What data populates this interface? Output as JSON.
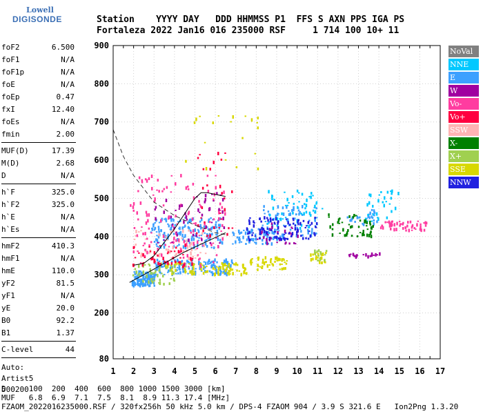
{
  "logo": {
    "company": "Lowell",
    "brand": "DIGISONDE"
  },
  "header": {
    "labels": "Station    YYYY DAY   DDD HHMMSS P1  FFS S AXN PPS IGA PS",
    "values": "Fortaleza 2022 Jan16 016 235000 RSF     1 714 100 10+ 11"
  },
  "params": [
    [
      [
        "foF2",
        "6.500"
      ],
      [
        "foF1",
        "N/A"
      ],
      [
        "foF1p",
        "N/A"
      ],
      [
        "foE",
        "N/A"
      ],
      [
        "foEp",
        "0.47"
      ],
      [
        "fxI",
        "12.40"
      ],
      [
        "foEs",
        "N/A"
      ],
      [
        "fmin",
        "2.00"
      ]
    ],
    [
      [
        "MUF(D)",
        "17.39"
      ],
      [
        "M(D)",
        "2.68"
      ],
      [
        "D",
        "N/A"
      ]
    ],
    [
      [
        "h`F",
        "325.0"
      ],
      [
        "h`F2",
        "325.0"
      ],
      [
        "h`E",
        "N/A"
      ],
      [
        "h`Es",
        "N/A"
      ]
    ],
    [
      [
        "hmF2",
        "410.3"
      ],
      [
        "hmF1",
        "N/A"
      ],
      [
        "hmE",
        "110.0"
      ],
      [
        "yF2",
        "81.5"
      ],
      [
        "yF1",
        "N/A"
      ],
      [
        "yE",
        "20.0"
      ],
      [
        "B0",
        "92.2"
      ],
      [
        "B1",
        "1.37"
      ]
    ],
    [
      [
        "C-level",
        "44"
      ]
    ]
  ],
  "notes": [
    "Auto:",
    "Artist5",
    "500200"
  ],
  "legend": [
    {
      "label": "NoVal",
      "color": "#808080"
    },
    {
      "label": "NNE",
      "color": "#00c8ff"
    },
    {
      "label": "E",
      "color": "#3ca0ff"
    },
    {
      "label": "W",
      "color": "#a000a0"
    },
    {
      "label": "Vo-",
      "color": "#ff3ca0"
    },
    {
      "label": "Vo+",
      "color": "#ff0040"
    },
    {
      "label": "SSW",
      "color": "#ffb4b4"
    },
    {
      "label": "X-",
      "color": "#008000"
    },
    {
      "label": "X+",
      "color": "#a0d050"
    },
    {
      "label": "SSE",
      "color": "#d8d800"
    },
    {
      "label": "NNW",
      "color": "#2020e0"
    }
  ],
  "footer": {
    "line1": "D     100  200  400  600  800 1000 1500 3000 [km]",
    "line2": "MUF   6.8  6.9  7.1  7.5  8.1  8.9 11.3 17.4 [MHz]",
    "line3": "FZAOM_2022016235000.RSF / 320fx256h 50 kHz 5.0 km / DPS-4 FZAOM 904 / 3.9 S 321.6 E   Ion2Png 1.3.20"
  },
  "chart_data": {
    "type": "scatter",
    "title": "",
    "xlabel": "",
    "ylabel": "",
    "xlim": [
      1,
      17
    ],
    "ylim": [
      80,
      900
    ],
    "x_ticks": [
      1,
      2,
      3,
      4,
      5,
      6,
      7,
      8,
      9,
      10,
      11,
      12,
      13,
      14,
      15,
      16,
      17
    ],
    "y_ticks": [
      80,
      200,
      300,
      400,
      500,
      600,
      700,
      800,
      900
    ],
    "grid": true,
    "series": [
      {
        "name": "E",
        "color": "#3ca0ff",
        "clusters": [
          {
            "x": [
              1.9,
              3.0
            ],
            "y": [
              270,
              310
            ],
            "n": 130
          },
          {
            "x": [
              3.0,
              6.8
            ],
            "y": [
              300,
              340
            ],
            "n": 160
          },
          {
            "x": [
              2.8,
              6.3
            ],
            "y": [
              370,
              450
            ],
            "n": 170
          },
          {
            "x": [
              6.8,
              9.3
            ],
            "y": [
              380,
              420
            ],
            "n": 80
          },
          {
            "x": [
              8.2,
              11.0
            ],
            "y": [
              400,
              480
            ],
            "n": 70
          },
          {
            "x": [
              12.4,
              13.9
            ],
            "y": [
              430,
              470
            ],
            "n": 30
          }
        ]
      },
      {
        "name": "NNE",
        "color": "#00c8ff",
        "clusters": [
          {
            "x": [
              8.5,
              11.2
            ],
            "y": [
              420,
              520
            ],
            "n": 60
          },
          {
            "x": [
              13.3,
              15.0
            ],
            "y": [
              440,
              520
            ],
            "n": 30
          }
        ]
      },
      {
        "name": "SSE",
        "color": "#d8d800",
        "clusters": [
          {
            "x": [
              3.5,
              7.5
            ],
            "y": [
              300,
              330
            ],
            "n": 90
          },
          {
            "x": [
              7.5,
              9.5
            ],
            "y": [
              310,
              345
            ],
            "n": 50
          },
          {
            "x": [
              10.6,
              11.4
            ],
            "y": [
              330,
              360
            ],
            "n": 25
          },
          {
            "x": [
              4.5,
              8.2
            ],
            "y": [
              560,
              720
            ],
            "n": 20
          }
        ]
      },
      {
        "name": "X+",
        "color": "#a0d050",
        "clusters": [
          {
            "x": [
              1.9,
              4.0
            ],
            "y": [
              275,
              330
            ],
            "n": 50
          },
          {
            "x": [
              10.7,
              11.5
            ],
            "y": [
              335,
              365
            ],
            "n": 12
          }
        ]
      },
      {
        "name": "SSW",
        "color": "#ffb4b4",
        "clusters": [
          {
            "x": [
              2.0,
              5.5
            ],
            "y": [
              340,
              420
            ],
            "n": 60
          }
        ]
      },
      {
        "name": "Vo-",
        "color": "#ff3ca0",
        "clusters": [
          {
            "x": [
              1.8,
              6.5
            ],
            "y": [
              320,
              560
            ],
            "n": 140
          },
          {
            "x": [
              14.0,
              16.3
            ],
            "y": [
              415,
              440
            ],
            "n": 50
          }
        ]
      },
      {
        "name": "Vo+",
        "color": "#ff0040",
        "clusters": [
          {
            "x": [
              1.8,
              5.0
            ],
            "y": [
              320,
              380
            ],
            "n": 50
          },
          {
            "x": [
              5.0,
              6.8
            ],
            "y": [
              400,
              620
            ],
            "n": 30
          }
        ]
      },
      {
        "name": "W",
        "color": "#a000a0",
        "clusters": [
          {
            "x": [
              3.0,
              6.5
            ],
            "y": [
              380,
              520
            ],
            "n": 50
          },
          {
            "x": [
              8.0,
              10.0
            ],
            "y": [
              380,
              440
            ],
            "n": 30
          },
          {
            "x": [
              12.5,
              14.0
            ],
            "y": [
              345,
              355
            ],
            "n": 20
          }
        ]
      },
      {
        "name": "NNW",
        "color": "#2020e0",
        "clusters": [
          {
            "x": [
              7.5,
              11.0
            ],
            "y": [
              390,
              450
            ],
            "n": 100
          }
        ]
      },
      {
        "name": "X-",
        "color": "#008000",
        "clusters": [
          {
            "x": [
              11.5,
              13.7
            ],
            "y": [
              400,
              460
            ],
            "n": 50
          }
        ]
      }
    ],
    "trace_F": {
      "x": [
        2.0,
        2.5,
        3.0,
        4.0,
        5.0,
        5.3,
        5.6,
        6.5
      ],
      "y": [
        325,
        330,
        350,
        420,
        500,
        515,
        515,
        505
      ]
    },
    "trace_E": {
      "x": [
        1.8,
        2.5,
        3.5,
        4.5,
        5.5,
        6.5
      ],
      "y": [
        280,
        300,
        330,
        360,
        385,
        410
      ]
    },
    "muf_curve": {
      "x": [
        1.0,
        1.5,
        2.0,
        3.0,
        4.0,
        5.0,
        6.0,
        6.5
      ],
      "y": [
        680,
        610,
        560,
        490,
        455,
        430,
        410,
        405
      ]
    }
  }
}
